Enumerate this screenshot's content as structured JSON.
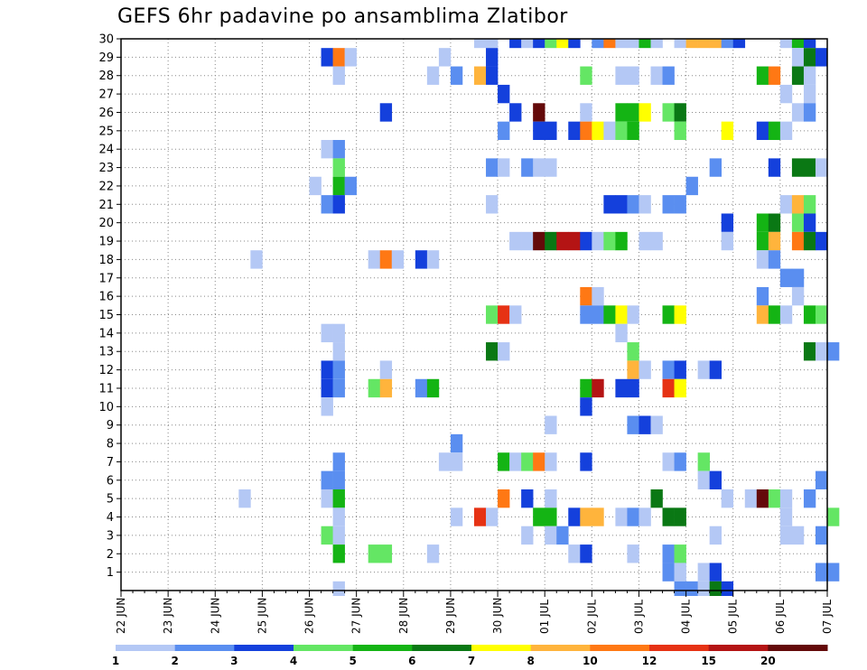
{
  "chart_data": {
    "type": "heatmap",
    "title": "GEFS 6hr padavine po ansamblima Zlatibor",
    "y_ticks": [
      "1",
      "2",
      "3",
      "4",
      "5",
      "6",
      "7",
      "8",
      "9",
      "10",
      "11",
      "12",
      "13",
      "14",
      "15",
      "16",
      "17",
      "18",
      "19",
      "20",
      "21",
      "22",
      "23",
      "24",
      "25",
      "26",
      "27",
      "28",
      "29",
      "30"
    ],
    "x_ticks": [
      "22 JUN",
      "23 JUN",
      "24 JUN",
      "25 JUN",
      "26 JUN",
      "27 JUN",
      "28 JUN",
      "29 JUN",
      "30 JUN",
      "01 JUL",
      "02 JUL",
      "03 JUL",
      "04 JUL",
      "05 JUL",
      "06 JUL",
      "07 JUL"
    ],
    "x_range_days": [
      0,
      15
    ],
    "y_range": [
      0,
      30
    ],
    "grid": true,
    "legend": {
      "placement": "bottom",
      "labels": [
        "1",
        "2",
        "3",
        "4",
        "5",
        "6",
        "7",
        "8",
        "10",
        "12",
        "15",
        "20"
      ],
      "colors": [
        "#b4c8f5",
        "#5a8ef0",
        "#1440dc",
        "#64e664",
        "#14b414",
        "#0a7814",
        "#ffff00",
        "#ffb43c",
        "#ff7814",
        "#e63214",
        "#b41414",
        "#640a0a"
      ]
    },
    "cells": [
      [
        30,
        7.5,
        1
      ],
      [
        30,
        7.75,
        1
      ],
      [
        30,
        8.25,
        3
      ],
      [
        30,
        8.5,
        1
      ],
      [
        30,
        8.75,
        3
      ],
      [
        30,
        9,
        4
      ],
      [
        30,
        9.25,
        7
      ],
      [
        30,
        9.5,
        3
      ],
      [
        30,
        10,
        2
      ],
      [
        30,
        10.25,
        9
      ],
      [
        30,
        10.5,
        1
      ],
      [
        30,
        10.75,
        1
      ],
      [
        30,
        11,
        5
      ],
      [
        30,
        11.25,
        1
      ],
      [
        30,
        11.75,
        1
      ],
      [
        30,
        12,
        8
      ],
      [
        30,
        12.25,
        8
      ],
      [
        30,
        12.5,
        8
      ],
      [
        30,
        12.75,
        2
      ],
      [
        30,
        13,
        3
      ],
      [
        30,
        14,
        1
      ],
      [
        30,
        14.25,
        5
      ],
      [
        30,
        14.5,
        3
      ],
      [
        29,
        4.25,
        3
      ],
      [
        29,
        4.5,
        9
      ],
      [
        29,
        4.75,
        1
      ],
      [
        29,
        6.75,
        1
      ],
      [
        29,
        7.75,
        3
      ],
      [
        29,
        14.25,
        1
      ],
      [
        29,
        14.5,
        6
      ],
      [
        29,
        14.75,
        3
      ],
      [
        28,
        4.5,
        1
      ],
      [
        28,
        6.5,
        1
      ],
      [
        28,
        7,
        2
      ],
      [
        28,
        7.5,
        8
      ],
      [
        28,
        7.75,
        3
      ],
      [
        28,
        9.75,
        4
      ],
      [
        28,
        10.5,
        1
      ],
      [
        28,
        10.75,
        1
      ],
      [
        28,
        11.25,
        1
      ],
      [
        28,
        11.5,
        2
      ],
      [
        28,
        13.5,
        5
      ],
      [
        28,
        13.75,
        9
      ],
      [
        28,
        14.25,
        6
      ],
      [
        28,
        14.5,
        1
      ],
      [
        27,
        8,
        3
      ],
      [
        27,
        14,
        1
      ],
      [
        27,
        14.5,
        1
      ],
      [
        26,
        5.5,
        3
      ],
      [
        26,
        8.25,
        3
      ],
      [
        26,
        8.75,
        12
      ],
      [
        26,
        9.75,
        1
      ],
      [
        26,
        10.5,
        5
      ],
      [
        26,
        10.75,
        5
      ],
      [
        26,
        11,
        7
      ],
      [
        26,
        11.5,
        4
      ],
      [
        26,
        11.75,
        6
      ],
      [
        26,
        14.25,
        1
      ],
      [
        26,
        14.5,
        2
      ],
      [
        25,
        8,
        2
      ],
      [
        25,
        8.75,
        3
      ],
      [
        25,
        9,
        3
      ],
      [
        25,
        9.5,
        3
      ],
      [
        25,
        9.75,
        9
      ],
      [
        25,
        10,
        7
      ],
      [
        25,
        10.25,
        1
      ],
      [
        25,
        10.5,
        4
      ],
      [
        25,
        10.75,
        5
      ],
      [
        25,
        11.75,
        4
      ],
      [
        25,
        12.75,
        7
      ],
      [
        25,
        13.5,
        3
      ],
      [
        25,
        13.75,
        5
      ],
      [
        25,
        14,
        1
      ],
      [
        24,
        4.25,
        1
      ],
      [
        24,
        4.5,
        2
      ],
      [
        23,
        4.5,
        4
      ],
      [
        23,
        7.75,
        2
      ],
      [
        23,
        8,
        1
      ],
      [
        23,
        8.5,
        2
      ],
      [
        23,
        8.75,
        1
      ],
      [
        23,
        9,
        1
      ],
      [
        23,
        12.5,
        2
      ],
      [
        23,
        13.75,
        3
      ],
      [
        23,
        14.25,
        6
      ],
      [
        23,
        14.5,
        6
      ],
      [
        23,
        14.75,
        1
      ],
      [
        22,
        4,
        1
      ],
      [
        22,
        4.5,
        5
      ],
      [
        22,
        4.75,
        2
      ],
      [
        22,
        12,
        2
      ],
      [
        21,
        4.25,
        2
      ],
      [
        21,
        4.5,
        3
      ],
      [
        21,
        7.75,
        1
      ],
      [
        21,
        10.25,
        3
      ],
      [
        21,
        10.5,
        3
      ],
      [
        21,
        10.75,
        2
      ],
      [
        21,
        11,
        1
      ],
      [
        21,
        11.5,
        2
      ],
      [
        21,
        11.75,
        2
      ],
      [
        21,
        14,
        1
      ],
      [
        21,
        14.25,
        8
      ],
      [
        21,
        14.5,
        4
      ],
      [
        20,
        12.75,
        3
      ],
      [
        20,
        13.5,
        5
      ],
      [
        20,
        13.75,
        6
      ],
      [
        20,
        14.25,
        4
      ],
      [
        20,
        14.5,
        3
      ],
      [
        19,
        8.25,
        1
      ],
      [
        19,
        8.5,
        1
      ],
      [
        19,
        8.75,
        12
      ],
      [
        19,
        9,
        6
      ],
      [
        19,
        9.25,
        11
      ],
      [
        19,
        9.5,
        11
      ],
      [
        19,
        9.75,
        3
      ],
      [
        19,
        10,
        1
      ],
      [
        19,
        10.25,
        4
      ],
      [
        19,
        10.5,
        5
      ],
      [
        19,
        11,
        1
      ],
      [
        19,
        11.25,
        1
      ],
      [
        19,
        12.75,
        1
      ],
      [
        19,
        13.5,
        5
      ],
      [
        19,
        13.75,
        8
      ],
      [
        19,
        14.25,
        9
      ],
      [
        19,
        14.5,
        6
      ],
      [
        19,
        14.75,
        3
      ],
      [
        18,
        2.75,
        1
      ],
      [
        18,
        5.25,
        1
      ],
      [
        18,
        5.5,
        9
      ],
      [
        18,
        5.75,
        1
      ],
      [
        18,
        6.25,
        3
      ],
      [
        18,
        6.5,
        1
      ],
      [
        18,
        13.5,
        1
      ],
      [
        18,
        13.75,
        2
      ],
      [
        17,
        14,
        2
      ],
      [
        17,
        14.25,
        2
      ],
      [
        16,
        9.75,
        9
      ],
      [
        16,
        10,
        1
      ],
      [
        16,
        13.5,
        2
      ],
      [
        16,
        14.25,
        1
      ],
      [
        15,
        7.75,
        4
      ],
      [
        15,
        8,
        10
      ],
      [
        15,
        8.25,
        1
      ],
      [
        15,
        9.75,
        2
      ],
      [
        15,
        10,
        2
      ],
      [
        15,
        10.25,
        5
      ],
      [
        15,
        10.5,
        7
      ],
      [
        15,
        10.75,
        1
      ],
      [
        15,
        11.5,
        5
      ],
      [
        15,
        11.75,
        7
      ],
      [
        15,
        13.5,
        8
      ],
      [
        15,
        13.75,
        5
      ],
      [
        15,
        14,
        1
      ],
      [
        15,
        14.5,
        5
      ],
      [
        15,
        14.75,
        4
      ],
      [
        14,
        4.25,
        1
      ],
      [
        14,
        4.5,
        1
      ],
      [
        14,
        10.5,
        1
      ],
      [
        13,
        4.5,
        1
      ],
      [
        13,
        7.75,
        6
      ],
      [
        13,
        8,
        1
      ],
      [
        13,
        10.75,
        4
      ],
      [
        13,
        14.5,
        6
      ],
      [
        13,
        14.75,
        1
      ],
      [
        13,
        15,
        2
      ],
      [
        12,
        4.25,
        3
      ],
      [
        12,
        4.5,
        2
      ],
      [
        12,
        5.5,
        1
      ],
      [
        12,
        10.75,
        8
      ],
      [
        12,
        11,
        1
      ],
      [
        12,
        11.5,
        2
      ],
      [
        12,
        11.75,
        3
      ],
      [
        12,
        12.25,
        1
      ],
      [
        12,
        12.5,
        3
      ],
      [
        11,
        4.25,
        3
      ],
      [
        11,
        4.5,
        2
      ],
      [
        11,
        5.25,
        4
      ],
      [
        11,
        5.5,
        8
      ],
      [
        11,
        6.25,
        2
      ],
      [
        11,
        6.5,
        5
      ],
      [
        11,
        9.75,
        5
      ],
      [
        11,
        10,
        11
      ],
      [
        11,
        10.5,
        3
      ],
      [
        11,
        10.75,
        3
      ],
      [
        11,
        11.5,
        10
      ],
      [
        11,
        11.75,
        7
      ],
      [
        10,
        4.25,
        1
      ],
      [
        10,
        9.75,
        3
      ],
      [
        9,
        9,
        1
      ],
      [
        9,
        10.75,
        2
      ],
      [
        9,
        11,
        3
      ],
      [
        9,
        11.25,
        1
      ],
      [
        8,
        7,
        2
      ],
      [
        7,
        4.5,
        2
      ],
      [
        7,
        6.75,
        1
      ],
      [
        7,
        7,
        1
      ],
      [
        7,
        8,
        5
      ],
      [
        7,
        8.25,
        1
      ],
      [
        7,
        8.5,
        4
      ],
      [
        7,
        8.75,
        9
      ],
      [
        7,
        9,
        1
      ],
      [
        7,
        9.75,
        3
      ],
      [
        7,
        11.5,
        1
      ],
      [
        7,
        11.75,
        2
      ],
      [
        7,
        12.25,
        4
      ],
      [
        6,
        4.25,
        2
      ],
      [
        6,
        4.5,
        2
      ],
      [
        6,
        12.25,
        1
      ],
      [
        6,
        12.5,
        3
      ],
      [
        6,
        14.75,
        2
      ],
      [
        5,
        2.5,
        1
      ],
      [
        5,
        4.25,
        1
      ],
      [
        5,
        4.5,
        5
      ],
      [
        5,
        8,
        9
      ],
      [
        5,
        8.5,
        3
      ],
      [
        5,
        9,
        1
      ],
      [
        5,
        11.25,
        6
      ],
      [
        5,
        12.75,
        1
      ],
      [
        5,
        13.25,
        1
      ],
      [
        5,
        13.5,
        12
      ],
      [
        5,
        13.75,
        4
      ],
      [
        5,
        14,
        1
      ],
      [
        5,
        14.5,
        2
      ],
      [
        4,
        4.5,
        1
      ],
      [
        4,
        7,
        1
      ],
      [
        4,
        7.5,
        10
      ],
      [
        4,
        7.75,
        1
      ],
      [
        4,
        8.75,
        5
      ],
      [
        4,
        9,
        5
      ],
      [
        4,
        9.5,
        3
      ],
      [
        4,
        9.75,
        8
      ],
      [
        4,
        10,
        8
      ],
      [
        4,
        10.5,
        1
      ],
      [
        4,
        10.75,
        2
      ],
      [
        4,
        11,
        1
      ],
      [
        4,
        11.5,
        6
      ],
      [
        4,
        11.75,
        6
      ],
      [
        4,
        14,
        1
      ],
      [
        4,
        15,
        4
      ],
      [
        3,
        4.25,
        4
      ],
      [
        3,
        4.5,
        1
      ],
      [
        3,
        8.5,
        1
      ],
      [
        3,
        9,
        1
      ],
      [
        3,
        9.25,
        2
      ],
      [
        3,
        12.5,
        1
      ],
      [
        3,
        14,
        1
      ],
      [
        3,
        14.25,
        1
      ],
      [
        3,
        14.75,
        2
      ],
      [
        2,
        4.5,
        5
      ],
      [
        2,
        5.25,
        4
      ],
      [
        2,
        5.5,
        4
      ],
      [
        2,
        6.5,
        1
      ],
      [
        2,
        9.5,
        1
      ],
      [
        2,
        9.75,
        3
      ],
      [
        2,
        10.75,
        1
      ],
      [
        2,
        11.5,
        2
      ],
      [
        2,
        11.75,
        4
      ],
      [
        1,
        11.5,
        2
      ],
      [
        1,
        11.75,
        1
      ],
      [
        1,
        12.25,
        1
      ],
      [
        1,
        12.5,
        3
      ],
      [
        1,
        14.75,
        2
      ],
      [
        1,
        15,
        2
      ],
      [
        0,
        4.5,
        1
      ],
      [
        0,
        11.75,
        2
      ],
      [
        0,
        12,
        2
      ],
      [
        0,
        12.25,
        1
      ],
      [
        0,
        12.5,
        6
      ],
      [
        0,
        12.75,
        3
      ]
    ]
  }
}
